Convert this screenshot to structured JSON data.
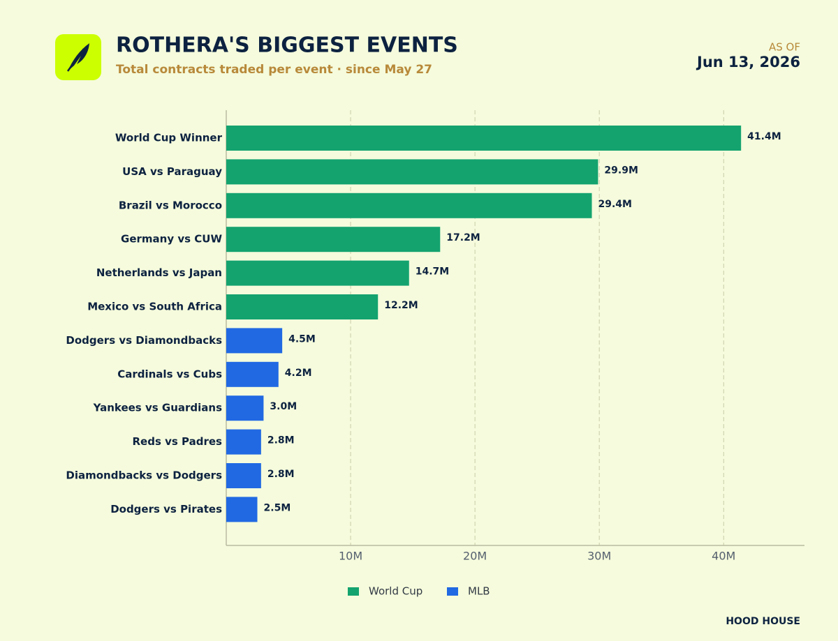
{
  "header": {
    "as_of": "AS OF",
    "date": "Jun 13, 2026",
    "brand": "HOOD HOUSE"
  },
  "chart_data": {
    "type": "bar",
    "orientation": "horizontal",
    "title": "ROTHERA'S BIGGEST EVENTS",
    "subtitle": "Total contracts traded per event · since May 27",
    "categories": [
      "World Cup Winner",
      "USA vs Paraguay",
      "Brazil vs Morocco",
      "Germany vs CUW",
      "Netherlands vs Japan",
      "Mexico vs South Africa",
      "Dodgers vs Diamondbacks",
      "Cardinals vs Cubs",
      "Yankees vs Guardians",
      "Reds vs Padres",
      "Diamondbacks vs Dodgers",
      "Dodgers vs Pirates"
    ],
    "series": [
      {
        "name": "World Cup",
        "color": "#14a36f",
        "values": [
          41400000,
          29900000,
          29400000,
          17200000,
          14700000,
          12200000,
          null,
          null,
          null,
          null,
          null,
          null
        ],
        "value_labels": [
          "41.4M",
          "29.9M",
          "29.4M",
          "17.2M",
          "14.7M",
          "12.2M",
          null,
          null,
          null,
          null,
          null,
          null
        ]
      },
      {
        "name": "MLB",
        "color": "#2169e3",
        "values": [
          null,
          null,
          null,
          null,
          null,
          null,
          4500000,
          4200000,
          3000000,
          2800000,
          2800000,
          2500000
        ],
        "value_labels": [
          null,
          null,
          null,
          null,
          null,
          null,
          "4.5M",
          "4.2M",
          "3.0M",
          "2.8M",
          "2.8M",
          "2.5M"
        ]
      }
    ],
    "xlim": [
      0,
      46500000
    ],
    "xticks": [
      {
        "value": 10000000,
        "label": "10M"
      },
      {
        "value": 20000000,
        "label": "20M"
      },
      {
        "value": 30000000,
        "label": "30M"
      },
      {
        "value": 40000000,
        "label": "40M"
      }
    ],
    "grid": true,
    "legend": "bottom"
  }
}
